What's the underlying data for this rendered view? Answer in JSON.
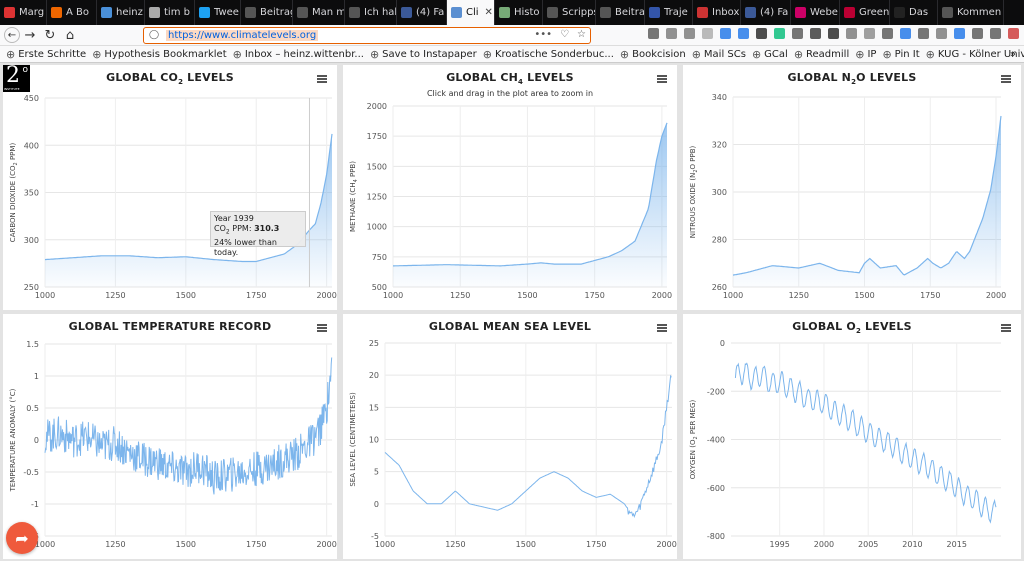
{
  "browser": {
    "tabs": [
      {
        "label": "Marg",
        "color": "#d33"
      },
      {
        "label": "A Bo",
        "color": "#e60"
      },
      {
        "label": "heinz",
        "color": "#4a90d9"
      },
      {
        "label": "tim b",
        "color": "#aaa"
      },
      {
        "label": "Twee",
        "color": "#1da1f2"
      },
      {
        "label": "Beitrag",
        "color": "#555"
      },
      {
        "label": "Man mu",
        "color": "#555"
      },
      {
        "label": "Ich habe",
        "color": "#555"
      },
      {
        "label": "(4) Fa",
        "color": "#3b5998"
      },
      {
        "label": "Cli",
        "color": "#5b8fd1",
        "active": true
      },
      {
        "label": "Histo",
        "color": "#7a7"
      },
      {
        "label": "Scripps C",
        "color": "#555"
      },
      {
        "label": "Beitrag",
        "color": "#555"
      },
      {
        "label": "Traje",
        "color": "#3355aa"
      },
      {
        "label": "Inbox",
        "color": "#c33"
      },
      {
        "label": "(4) Fa",
        "color": "#3b5998"
      },
      {
        "label": "Webe",
        "color": "#c06"
      },
      {
        "label": "Green",
        "color": "#b03"
      },
      {
        "label": "Das ",
        "color": "#222"
      },
      {
        "label": "Kommen",
        "color": "#555"
      }
    ],
    "url": "https://www.climatelevels.org",
    "url_ellipsis": "•••",
    "bookmarks": [
      "Erste Schritte",
      "Hypothesis Bookmarklet",
      "Inbox – heinz.wittenbr...",
      "Save to Instapaper",
      "Kroatische Sonderbuc...",
      "Bookcision",
      "Mail SCs",
      "GCal",
      "Readmill",
      "IP",
      "Pin It",
      "KUG - Kölner Universit..."
    ],
    "overflow": "»"
  },
  "logo": {
    "main": "2",
    "degree": "o",
    "sub": "INSTITUTE"
  },
  "share_icon": "share-arrow-icon",
  "tooltip": {
    "line1": "Year 1939",
    "line2_prefix": "CO",
    "line2_sub": "2",
    "line2_mid": " PPM: ",
    "line2_val": "310.3",
    "line3": "24% lower than today."
  },
  "panels": [
    {
      "title_pre": "GLOBAL CO",
      "title_sub": "2",
      "title_post": " LEVELS",
      "subtitle": "",
      "ylabel_pre": "CARBON DIOXIDE (CO",
      "ylabel_sub": "2",
      "ylabel_post": " PPM)"
    },
    {
      "title_pre": "GLOBAL CH",
      "title_sub": "4",
      "title_post": " LEVELS",
      "subtitle": "Click and drag in the plot area to zoom in",
      "ylabel_pre": "METHANE (CH",
      "ylabel_sub": "4",
      "ylabel_post": " PPB)"
    },
    {
      "title_pre": "GLOBAL N",
      "title_sub": "2",
      "title_post": "O LEVELS",
      "subtitle": "",
      "ylabel_pre": "NITROUS OXIDE (N",
      "ylabel_sub": "2",
      "ylabel_post": "O PPB)"
    },
    {
      "title_pre": "GLOBAL TEMPERATURE RECORD",
      "title_sub": "",
      "title_post": "",
      "subtitle": "",
      "ylabel_pre": "TEMPERATURE ANOMALY (°C)",
      "ylabel_sub": "",
      "ylabel_post": ""
    },
    {
      "title_pre": "GLOBAL MEAN SEA LEVEL",
      "title_sub": "",
      "title_post": "",
      "subtitle": "",
      "ylabel_pre": "SEA LEVEL (CENTIMETERS)",
      "ylabel_sub": "",
      "ylabel_post": ""
    },
    {
      "title_pre": "GLOBAL O",
      "title_sub": "2",
      "title_post": " LEVELS",
      "subtitle": "",
      "ylabel_pre": "OXYGEN (O",
      "ylabel_sub": "2",
      "ylabel_post": " PER MEG)"
    }
  ],
  "chart_data": [
    {
      "type": "area",
      "x": [
        1000,
        1100,
        1200,
        1300,
        1400,
        1500,
        1600,
        1700,
        1750,
        1800,
        1850,
        1900,
        1939,
        1960,
        1980,
        2000,
        2019
      ],
      "y": [
        279,
        281,
        283,
        283,
        281,
        282,
        279,
        277,
        277,
        281,
        285,
        296,
        310.3,
        317,
        339,
        369,
        412
      ],
      "ylim": [
        250,
        450
      ],
      "yticks": [
        250,
        300,
        350,
        400,
        450
      ],
      "xticks": [
        1000,
        1250,
        1500,
        1750,
        2000
      ],
      "xlim": [
        1000,
        2019
      ]
    },
    {
      "type": "area",
      "x": [
        1000,
        1100,
        1200,
        1300,
        1400,
        1500,
        1550,
        1600,
        1700,
        1750,
        1800,
        1850,
        1900,
        1950,
        1980,
        2000,
        2019
      ],
      "y": [
        675,
        680,
        685,
        680,
        675,
        690,
        700,
        690,
        690,
        720,
        750,
        800,
        880,
        1150,
        1550,
        1750,
        1860
      ],
      "ylim": [
        500,
        2000
      ],
      "yticks": [
        500,
        750,
        1000,
        1250,
        1500,
        1750,
        2000
      ],
      "xticks": [
        1000,
        1250,
        1500,
        1750,
        2000
      ],
      "xlim": [
        1000,
        2019
      ]
    },
    {
      "type": "area",
      "x": [
        1000,
        1050,
        1150,
        1250,
        1330,
        1400,
        1480,
        1500,
        1520,
        1560,
        1620,
        1650,
        1700,
        1740,
        1760,
        1790,
        1820,
        1850,
        1880,
        1900,
        1950,
        1980,
        2000,
        2019
      ],
      "y": [
        265,
        266,
        269,
        268,
        270,
        267,
        266,
        270,
        272,
        268,
        269,
        265,
        268,
        272,
        270,
        268,
        270,
        275,
        272,
        275,
        289,
        301,
        315,
        332
      ],
      "ylim": [
        260,
        340
      ],
      "yticks": [
        260,
        280,
        300,
        320,
        340
      ],
      "xticks": [
        1000,
        1250,
        1500,
        1750,
        2000
      ],
      "xlim": [
        1000,
        2019
      ]
    },
    {
      "type": "line",
      "x": [
        1000,
        1050,
        1100,
        1150,
        1200,
        1250,
        1300,
        1350,
        1400,
        1450,
        1500,
        1550,
        1600,
        1650,
        1700,
        1750,
        1800,
        1850,
        1900,
        1950,
        1980,
        2000,
        2019
      ],
      "y": [
        0.05,
        0.1,
        0.0,
        0.05,
        -0.1,
        -0.05,
        -0.2,
        -0.3,
        -0.35,
        -0.45,
        -0.5,
        -0.4,
        -0.6,
        -0.55,
        -0.5,
        -0.45,
        -0.4,
        -0.3,
        -0.2,
        0.0,
        0.2,
        0.5,
        1.2
      ],
      "ylim": [
        -1.5,
        1.5
      ],
      "yticks": [
        -1.5,
        -1,
        -0.5,
        0,
        0.5,
        1,
        1.5
      ],
      "xticks": [
        1000,
        1250,
        1500,
        1750,
        2000
      ],
      "xlim": [
        1000,
        2019
      ]
    },
    {
      "type": "line",
      "x": [
        1000,
        1050,
        1100,
        1150,
        1200,
        1250,
        1300,
        1350,
        1400,
        1450,
        1500,
        1550,
        1600,
        1650,
        1700,
        1750,
        1800,
        1850,
        1880,
        1900,
        1950,
        1980,
        2000,
        2019
      ],
      "y": [
        8,
        6,
        2,
        0,
        0,
        2,
        0,
        -0.5,
        -1,
        0,
        2,
        4,
        5,
        4,
        2,
        1,
        1.5,
        0,
        -2,
        -1,
        5,
        9,
        15,
        21
      ],
      "ylim": [
        -5,
        25
      ],
      "yticks": [
        -5,
        0,
        5,
        10,
        15,
        20,
        25
      ],
      "xticks": [
        1000,
        1250,
        1500,
        1750,
        2000
      ],
      "xlim": [
        1000,
        2019
      ]
    },
    {
      "type": "line",
      "x": [
        1990,
        1991,
        1992,
        1993,
        1994,
        1995,
        1996,
        1997,
        1998,
        1999,
        2000,
        2001,
        2002,
        2003,
        2004,
        2005,
        2006,
        2007,
        2008,
        2009,
        2010,
        2011,
        2012,
        2013,
        2014,
        2015,
        2016,
        2017,
        2018,
        2019
      ],
      "y": [
        -140,
        -120,
        -150,
        -130,
        -170,
        -160,
        -190,
        -200,
        -230,
        -240,
        -250,
        -280,
        -300,
        -320,
        -350,
        -370,
        -390,
        -410,
        -430,
        -460,
        -480,
        -500,
        -520,
        -550,
        -570,
        -600,
        -630,
        -650,
        -680,
        -700
      ],
      "ylim": [
        -800,
        0
      ],
      "yticks": [
        -800,
        -600,
        -400,
        -200,
        0
      ],
      "xticks": [
        1995,
        2000,
        2005,
        2010,
        2015
      ],
      "xlim": [
        1989.5,
        2020
      ]
    }
  ]
}
